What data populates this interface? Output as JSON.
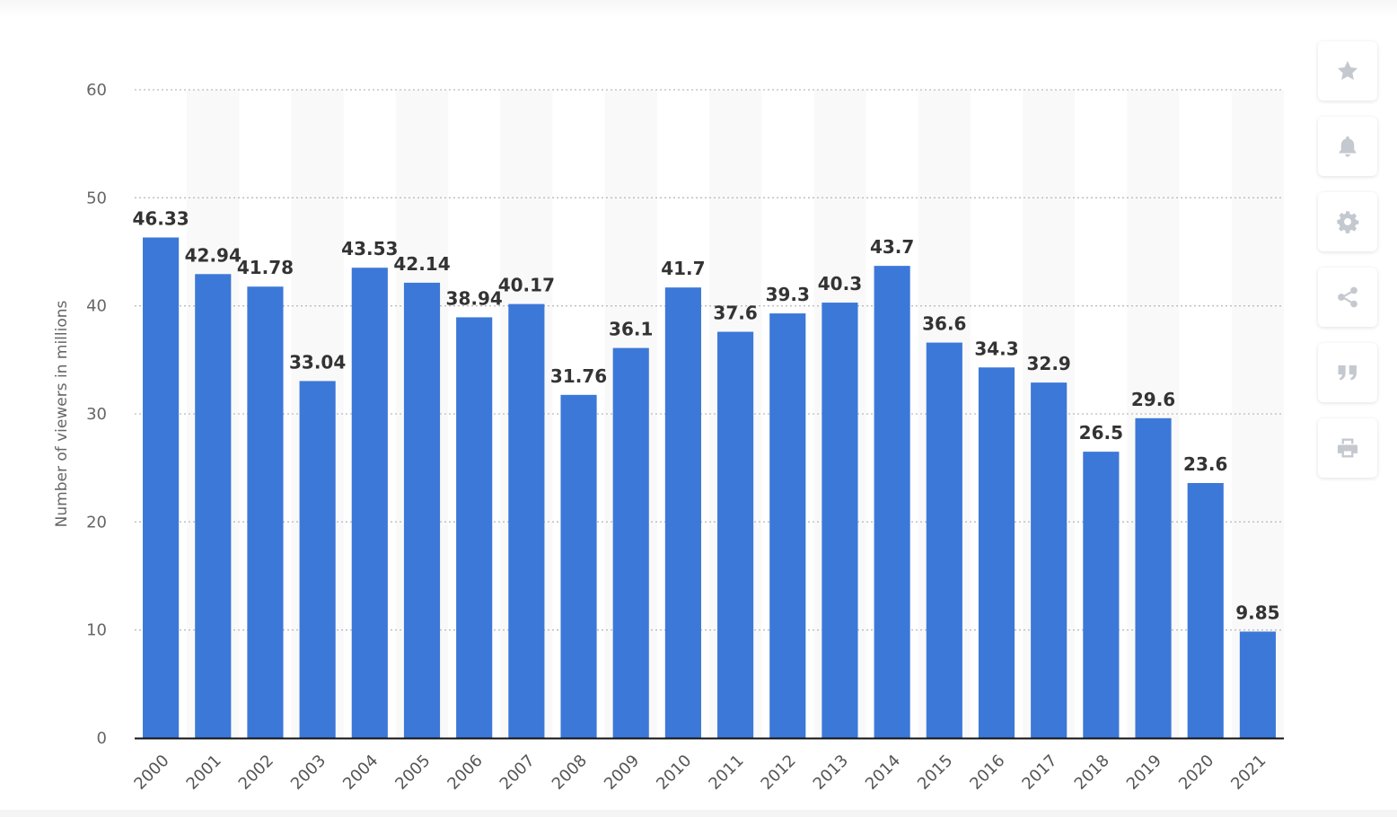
{
  "chart_data": {
    "type": "bar",
    "ylabel": "Number of viewers in millions",
    "xlabel": "",
    "ylim": [
      0,
      60
    ],
    "yticks": [
      "0",
      "10",
      "20",
      "30",
      "40",
      "50",
      "60"
    ],
    "grid": true,
    "bar_color": "#3c78d8",
    "categories": [
      "2000",
      "2001",
      "2002",
      "2003",
      "2004",
      "2005",
      "2006",
      "2007",
      "2008",
      "2009",
      "2010",
      "2011",
      "2012",
      "2013",
      "2014",
      "2015",
      "2016",
      "2017",
      "2018",
      "2019",
      "2020",
      "2021"
    ],
    "values": [
      46.33,
      42.94,
      41.78,
      33.04,
      43.53,
      42.14,
      38.94,
      40.17,
      31.76,
      36.1,
      41.7,
      37.6,
      39.3,
      40.3,
      43.7,
      36.6,
      34.3,
      32.9,
      26.5,
      29.6,
      23.6,
      9.85
    ],
    "value_labels": [
      "46.33",
      "42.94",
      "41.78",
      "33.04",
      "43.53",
      "42.14",
      "38.94",
      "40.17",
      "31.76",
      "36.1",
      "41.7",
      "37.6",
      "39.3",
      "40.3",
      "43.7",
      "36.6",
      "34.3",
      "32.9",
      "26.5",
      "29.6",
      "23.6",
      "9.85"
    ]
  },
  "sidebar": {
    "icons": [
      "star-icon",
      "bell-icon",
      "gear-icon",
      "share-icon",
      "quote-icon",
      "print-icon"
    ]
  }
}
